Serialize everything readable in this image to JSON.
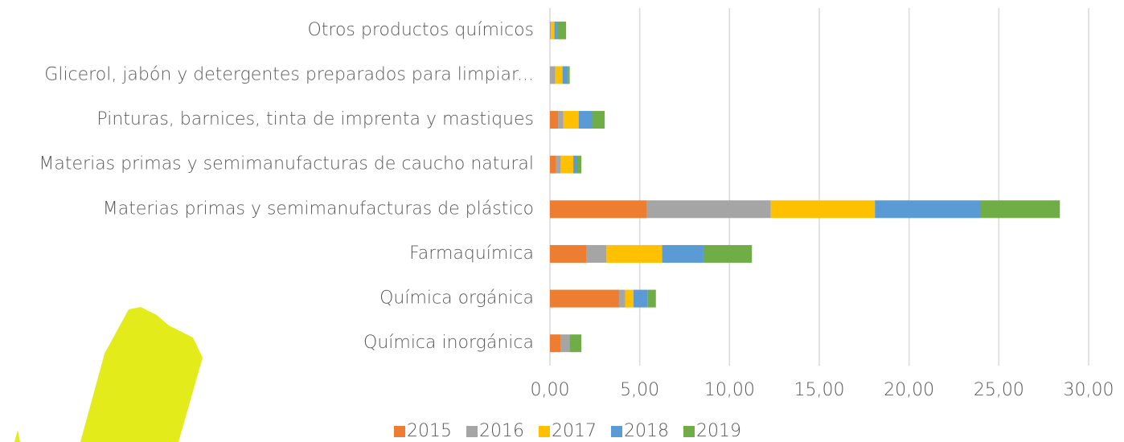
{
  "chart_data": {
    "type": "stacked-bar-horizontal",
    "categories": [
      "Otros productos químicos",
      "Glicerol, jabón y detergentes preparados para limpiar...",
      "Pinturas, barnices, tinta de imprenta y mastiques",
      "Materias primas y semimanufacturas de caucho natural",
      "Materias primas y semimanufacturas de plástico",
      "Farmaquímica",
      "Química orgánica",
      "Química inorgánica"
    ],
    "series": [
      {
        "name": "2015",
        "color": "#ed7d31",
        "values": [
          0,
          0,
          0.45,
          0.35,
          5.4,
          2.05,
          3.85,
          0.6
        ]
      },
      {
        "name": "2016",
        "color": "#a5a5a5",
        "values": [
          0.05,
          0.3,
          0.3,
          0.25,
          6.9,
          1.1,
          0.35,
          0.5
        ]
      },
      {
        "name": "2017",
        "color": "#ffc000",
        "values": [
          0.2,
          0.4,
          0.85,
          0.7,
          5.8,
          3.1,
          0.45,
          0
        ]
      },
      {
        "name": "2018",
        "color": "#5b9bd5",
        "values": [
          0.15,
          0.3,
          0.75,
          0.2,
          5.9,
          2.3,
          0.8,
          0
        ]
      },
      {
        "name": "2019",
        "color": "#70ad47",
        "values": [
          0.5,
          0.1,
          0.7,
          0.25,
          4.4,
          2.7,
          0.45,
          0.65
        ]
      }
    ],
    "xlim": [
      0,
      30
    ],
    "xticks": [
      {
        "value": 0,
        "label": "0,00"
      },
      {
        "value": 5,
        "label": "5,00"
      },
      {
        "value": 10,
        "label": "10,00"
      },
      {
        "value": 15,
        "label": "15,00"
      },
      {
        "value": 20,
        "label": "20,00"
      },
      {
        "value": 25,
        "label": "25,00"
      },
      {
        "value": 30,
        "label": "30,00"
      }
    ],
    "grid": true,
    "legend": "bottom"
  }
}
